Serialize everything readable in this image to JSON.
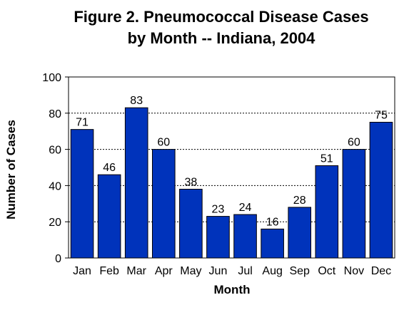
{
  "chart_data": {
    "type": "bar",
    "title_line1": "Figure 2.  Pneumococcal Disease Cases",
    "title_line2": "by Month -- Indiana, 2004",
    "xlabel": "Month",
    "ylabel": "Number of Cases",
    "categories": [
      "Jan",
      "Feb",
      "Mar",
      "Apr",
      "May",
      "Jun",
      "Jul",
      "Aug",
      "Sep",
      "Oct",
      "Nov",
      "Dec"
    ],
    "values": [
      71,
      46,
      83,
      60,
      38,
      23,
      24,
      16,
      28,
      51,
      60,
      75
    ],
    "yticks": [
      0,
      20,
      40,
      60,
      80,
      100
    ],
    "ylim": [
      0,
      100
    ],
    "grid": "dotted horizontal",
    "bar_color": "#0033BB",
    "bar_edge": "#000000"
  }
}
